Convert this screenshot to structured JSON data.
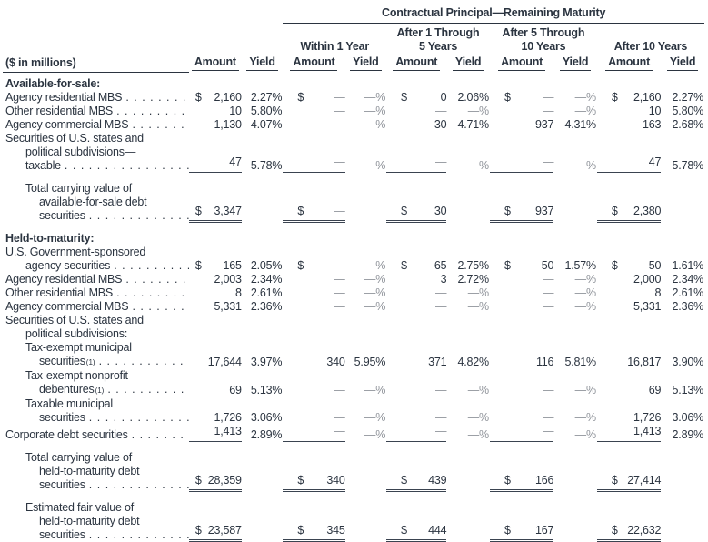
{
  "table": {
    "main_header": "Contractual Principal—Remaining Maturity",
    "unit_label": "($ in millions)",
    "col_amount": "Amount",
    "col_yield": "Yield",
    "groups": [
      {
        "lines": [
          "Within 1 Year"
        ]
      },
      {
        "lines": [
          "After 1 Through",
          "5 Years"
        ]
      },
      {
        "lines": [
          "After 5 Through",
          "10 Years"
        ]
      },
      {
        "lines": [
          "After 10 Years"
        ]
      }
    ],
    "rows": [
      {
        "t": "sec",
        "lines": [
          [
            "Available-for-sale:",
            0
          ]
        ]
      },
      {
        "t": "r",
        "lines": [
          [
            "Agency residential MBS",
            0
          ]
        ],
        "dots": true,
        "c": [
          [
            "$",
            "2,160",
            "2.27%"
          ],
          [
            "$",
            "—",
            "—%"
          ],
          [
            "$",
            "0",
            "2.06%"
          ],
          [
            "$",
            "—",
            "—%"
          ],
          [
            "$",
            "2,160",
            "2.27%"
          ]
        ]
      },
      {
        "t": "r",
        "lines": [
          [
            "Other residential MBS",
            0
          ]
        ],
        "dots": true,
        "c": [
          [
            "",
            "10",
            "5.80%"
          ],
          [
            "",
            "—",
            "—%"
          ],
          [
            "",
            "—",
            "—%"
          ],
          [
            "",
            "—",
            "—%"
          ],
          [
            "",
            "10",
            "5.80%"
          ]
        ]
      },
      {
        "t": "r",
        "lines": [
          [
            "Agency commercial MBS",
            0
          ]
        ],
        "dots": true,
        "c": [
          [
            "",
            "1,130",
            "4.07%"
          ],
          [
            "",
            "—",
            "—%"
          ],
          [
            "",
            "30",
            "4.71%"
          ],
          [
            "",
            "937",
            "4.31%"
          ],
          [
            "",
            "163",
            "2.68%"
          ]
        ]
      },
      {
        "t": "r",
        "rule": "single",
        "lines": [
          [
            "Securities of U.S. states and",
            0
          ],
          [
            "political subdivisions—",
            1
          ],
          [
            "taxable",
            1
          ]
        ],
        "dots": true,
        "c": [
          [
            "",
            "47",
            "5.78%"
          ],
          [
            "",
            "—",
            "—%"
          ],
          [
            "",
            "—",
            "—%"
          ],
          [
            "",
            "—",
            "—%"
          ],
          [
            "",
            "47",
            "5.78%"
          ]
        ]
      },
      {
        "t": "gap"
      },
      {
        "t": "r",
        "rule": "double",
        "lines": [
          [
            "Total carrying value of",
            1
          ],
          [
            "available-for-sale debt",
            2
          ],
          [
            "securities",
            2
          ]
        ],
        "dots": true,
        "c": [
          [
            "$",
            "3,347",
            ""
          ],
          [
            "$",
            "—",
            ""
          ],
          [
            "$",
            "30",
            ""
          ],
          [
            "$",
            "937",
            ""
          ],
          [
            "$",
            "2,380",
            ""
          ]
        ]
      },
      {
        "t": "gap"
      },
      {
        "t": "sec",
        "lines": [
          [
            "Held-to-maturity:",
            0
          ]
        ]
      },
      {
        "t": "r",
        "lines": [
          [
            "U.S. Government-sponsored",
            0
          ],
          [
            "agency securities",
            1
          ]
        ],
        "dots": true,
        "c": [
          [
            "$",
            "165",
            "2.05%"
          ],
          [
            "$",
            "—",
            "—%"
          ],
          [
            "$",
            "65",
            "2.75%"
          ],
          [
            "$",
            "50",
            "1.57%"
          ],
          [
            "$",
            "50",
            "1.61%"
          ]
        ]
      },
      {
        "t": "r",
        "lines": [
          [
            "Agency residential MBS",
            0
          ]
        ],
        "dots": true,
        "c": [
          [
            "",
            "2,003",
            "2.34%"
          ],
          [
            "",
            "—",
            "—%"
          ],
          [
            "",
            "3",
            "2.72%"
          ],
          [
            "",
            "—",
            "—%"
          ],
          [
            "",
            "2,000",
            "2.34%"
          ]
        ]
      },
      {
        "t": "r",
        "lines": [
          [
            "Other residential MBS",
            0
          ]
        ],
        "dots": true,
        "c": [
          [
            "",
            "8",
            "2.61%"
          ],
          [
            "",
            "—",
            "—%"
          ],
          [
            "",
            "—",
            "—%"
          ],
          [
            "",
            "—",
            "—%"
          ],
          [
            "",
            "8",
            "2.61%"
          ]
        ]
      },
      {
        "t": "r",
        "lines": [
          [
            "Agency commercial MBS",
            0
          ]
        ],
        "dots": true,
        "c": [
          [
            "",
            "5,331",
            "2.36%"
          ],
          [
            "",
            "—",
            "—%"
          ],
          [
            "",
            "—",
            "—%"
          ],
          [
            "",
            "—",
            "—%"
          ],
          [
            "",
            "5,331",
            "2.36%"
          ]
        ]
      },
      {
        "t": "r",
        "lines": [
          [
            "Securities of U.S. states and",
            0
          ],
          [
            "political subdivisions:",
            1
          ]
        ],
        "dots": false,
        "c": null
      },
      {
        "t": "r",
        "lines": [
          [
            "Tax-exempt municipal",
            1
          ],
          [
            "securities",
            2
          ]
        ],
        "sup": "(1)",
        "dots": true,
        "c": [
          [
            "",
            "17,644",
            "3.97%"
          ],
          [
            "",
            "340",
            "5.95%"
          ],
          [
            "",
            "371",
            "4.82%"
          ],
          [
            "",
            "116",
            "5.81%"
          ],
          [
            "",
            "16,817",
            "3.90%"
          ]
        ]
      },
      {
        "t": "r",
        "lines": [
          [
            "Tax-exempt nonprofit",
            1
          ],
          [
            "debentures",
            2
          ]
        ],
        "sup": "(1)",
        "dots": true,
        "c": [
          [
            "",
            "69",
            "5.13%"
          ],
          [
            "",
            "—",
            "—%"
          ],
          [
            "",
            "—",
            "—%"
          ],
          [
            "",
            "—",
            "—%"
          ],
          [
            "",
            "69",
            "5.13%"
          ]
        ]
      },
      {
        "t": "r",
        "lines": [
          [
            "Taxable municipal",
            1
          ],
          [
            "securities",
            2
          ]
        ],
        "dots": true,
        "c": [
          [
            "",
            "1,726",
            "3.06%"
          ],
          [
            "",
            "—",
            "—%"
          ],
          [
            "",
            "—",
            "—%"
          ],
          [
            "",
            "—",
            "—%"
          ],
          [
            "",
            "1,726",
            "3.06%"
          ]
        ]
      },
      {
        "t": "r",
        "rule": "single",
        "lines": [
          [
            "Corporate debt securities",
            0
          ]
        ],
        "dots": true,
        "c": [
          [
            "",
            "1,413",
            "2.89%"
          ],
          [
            "",
            "—",
            "—%"
          ],
          [
            "",
            "—",
            "—%"
          ],
          [
            "",
            "—",
            "—%"
          ],
          [
            "",
            "1,413",
            "2.89%"
          ]
        ]
      },
      {
        "t": "gap"
      },
      {
        "t": "r",
        "rule": "double",
        "lines": [
          [
            "Total carrying value of",
            1
          ],
          [
            "held-to-maturity debt",
            2
          ],
          [
            "securities",
            2
          ]
        ],
        "dots": true,
        "c": [
          [
            "$",
            "28,359",
            ""
          ],
          [
            "$",
            "340",
            ""
          ],
          [
            "$",
            "439",
            ""
          ],
          [
            "$",
            "166",
            ""
          ],
          [
            "$",
            "27,414",
            ""
          ]
        ]
      },
      {
        "t": "gap"
      },
      {
        "t": "r",
        "rule": "double",
        "lines": [
          [
            "Estimated fair value of",
            1
          ],
          [
            "held-to-maturity debt",
            2
          ],
          [
            "securities",
            2
          ]
        ],
        "dots": true,
        "c": [
          [
            "$",
            "23,587",
            ""
          ],
          [
            "$",
            "345",
            ""
          ],
          [
            "$",
            "444",
            ""
          ],
          [
            "$",
            "167",
            ""
          ],
          [
            "$",
            "22,632",
            ""
          ]
        ]
      }
    ]
  }
}
